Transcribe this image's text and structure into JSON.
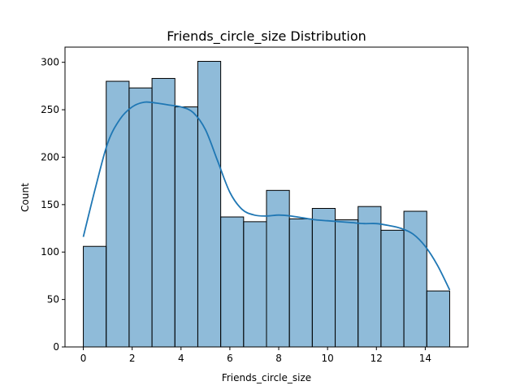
{
  "chart_data": {
    "type": "bar",
    "title": "Friends_circle_size Distribution",
    "xlabel": "Friends_circle_size",
    "ylabel": "Count",
    "bin_edges": [
      0,
      0.9375,
      1.875,
      2.8125,
      3.75,
      4.6875,
      5.625,
      6.5625,
      7.5,
      8.4375,
      9.375,
      10.3125,
      11.25,
      12.1875,
      13.125,
      14.0625,
      15
    ],
    "values": [
      106,
      280,
      273,
      283,
      253,
      301,
      137,
      132,
      165,
      135,
      146,
      134,
      148,
      123,
      143,
      59
    ],
    "kde": {
      "x": [
        0,
        0.5,
        1,
        1.5,
        2,
        2.5,
        3,
        3.5,
        4,
        4.5,
        5,
        5.5,
        6,
        6.5,
        7,
        7.5,
        8,
        8.5,
        9,
        9.5,
        10,
        10.5,
        11,
        11.5,
        12,
        12.5,
        13,
        13.5,
        14,
        14.5,
        15
      ],
      "y": [
        116,
        168,
        215,
        240,
        253,
        258,
        257,
        255,
        253,
        247,
        229,
        196,
        163,
        145,
        139,
        138,
        139,
        138,
        136,
        134,
        133,
        132,
        131,
        130,
        130,
        128,
        125,
        119,
        106,
        86,
        60
      ]
    },
    "xlim": [
      -0.75,
      15.75
    ],
    "ylim": [
      0,
      316
    ],
    "x_ticks": [
      0,
      2,
      4,
      6,
      8,
      10,
      12,
      14
    ],
    "y_ticks": [
      0,
      50,
      100,
      150,
      200,
      250,
      300
    ],
    "bar_color": "#1f77b4",
    "bar_opacity": 0.5,
    "line_color": "#1f77b4",
    "grid": false
  }
}
